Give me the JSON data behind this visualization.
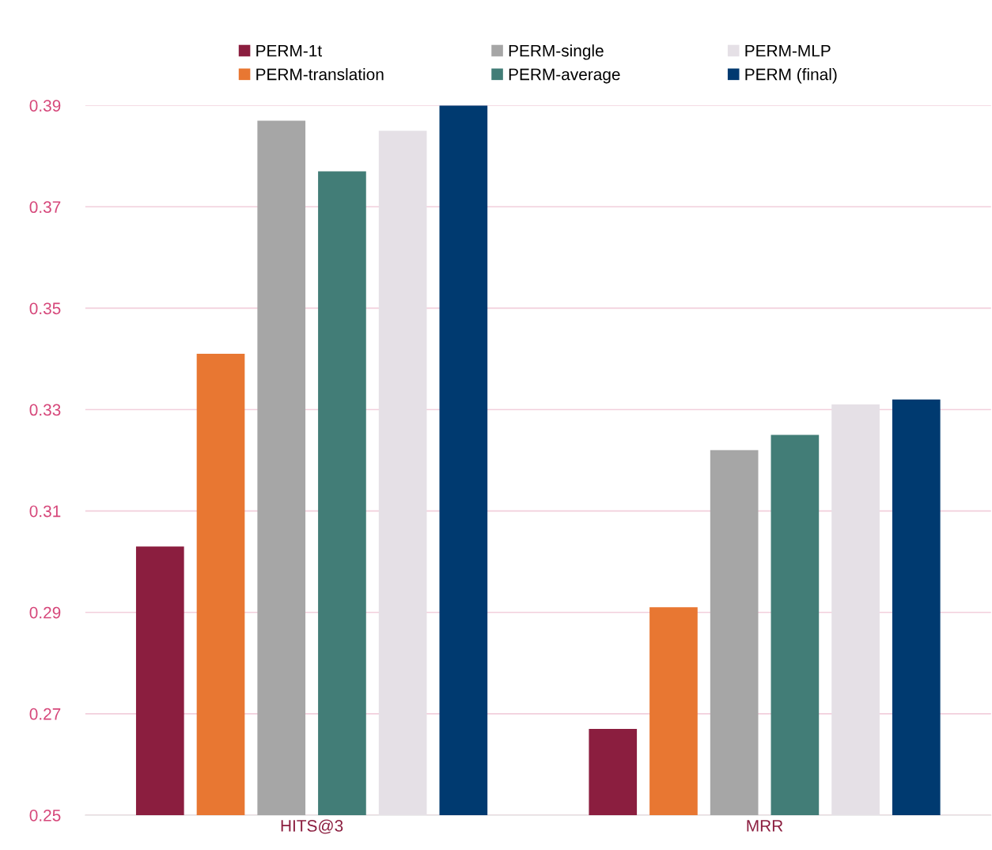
{
  "chart_data": {
    "type": "bar",
    "categories": [
      "HITS@3",
      "MRR"
    ],
    "series": [
      {
        "name": "PERM-1t",
        "color": "#8b1e3f",
        "values": [
          0.303,
          0.267
        ]
      },
      {
        "name": "PERM-translation",
        "color": "#e87732",
        "values": [
          0.341,
          0.291
        ]
      },
      {
        "name": "PERM-single",
        "color": "#a6a6a6",
        "values": [
          0.387,
          0.322
        ]
      },
      {
        "name": "PERM-average",
        "color": "#427d77",
        "values": [
          0.377,
          0.325
        ]
      },
      {
        "name": "PERM-MLP",
        "color": "#e5e0e6",
        "values": [
          0.385,
          0.331
        ]
      },
      {
        "name": "PERM (final)",
        "color": "#003a70",
        "values": [
          0.39,
          0.332
        ]
      }
    ],
    "ylim": [
      0.25,
      0.39
    ],
    "yticks": [
      0.25,
      0.27,
      0.29,
      0.31,
      0.33,
      0.35,
      0.37,
      0.39
    ],
    "grid": "y",
    "legend": "top"
  }
}
